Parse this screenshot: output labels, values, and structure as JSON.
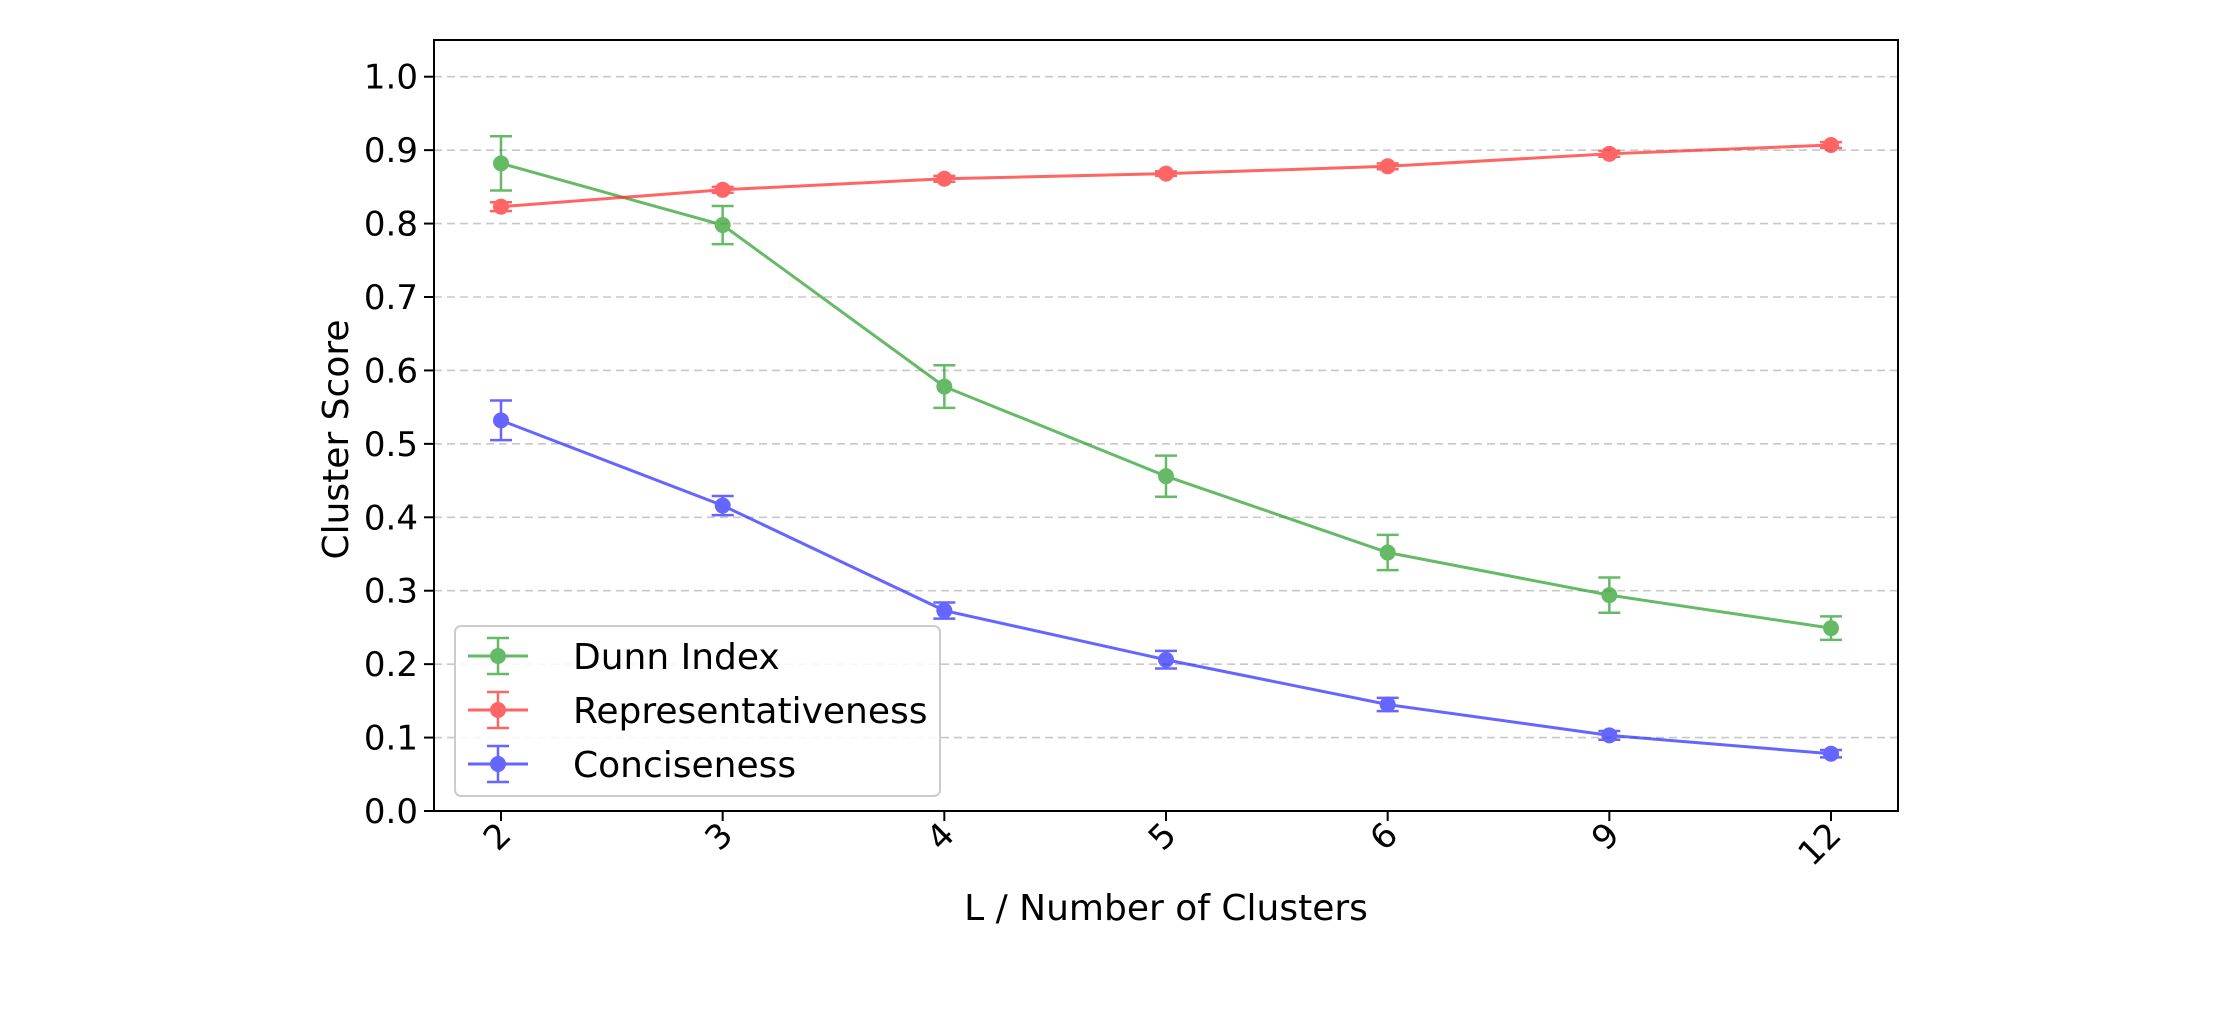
{
  "chart_data": {
    "type": "line",
    "categories": [
      "2",
      "3",
      "4",
      "5",
      "6",
      "9",
      "12"
    ],
    "xlabel": "L / Number of Clusters",
    "ylabel": "Cluster Score",
    "ylim": [
      0.0,
      1.05
    ],
    "yticks": [
      "0.0",
      "0.1",
      "0.2",
      "0.3",
      "0.4",
      "0.5",
      "0.6",
      "0.7",
      "0.8",
      "0.9",
      "1.0"
    ],
    "grid": "horizontal dashed",
    "legend_position": "lower-left",
    "series": [
      {
        "name": "Dunn Index",
        "color": "#2ca02c",
        "values": [
          0.882,
          0.798,
          0.578,
          0.456,
          0.352,
          0.294,
          0.249
        ],
        "errors": [
          0.037,
          0.026,
          0.029,
          0.028,
          0.024,
          0.024,
          0.016
        ]
      },
      {
        "name": "Representativeness",
        "color": "#ff2a2a",
        "values": [
          0.823,
          0.846,
          0.861,
          0.868,
          0.878,
          0.895,
          0.907
        ],
        "errors": [
          0.006,
          0.004,
          0.004,
          0.003,
          0.004,
          0.004,
          0.004
        ]
      },
      {
        "name": "Conciseness",
        "color": "#2a2aff",
        "values": [
          0.532,
          0.416,
          0.273,
          0.206,
          0.145,
          0.103,
          0.078
        ],
        "errors": [
          0.027,
          0.013,
          0.011,
          0.012,
          0.009,
          0.006,
          0.005
        ]
      }
    ]
  }
}
